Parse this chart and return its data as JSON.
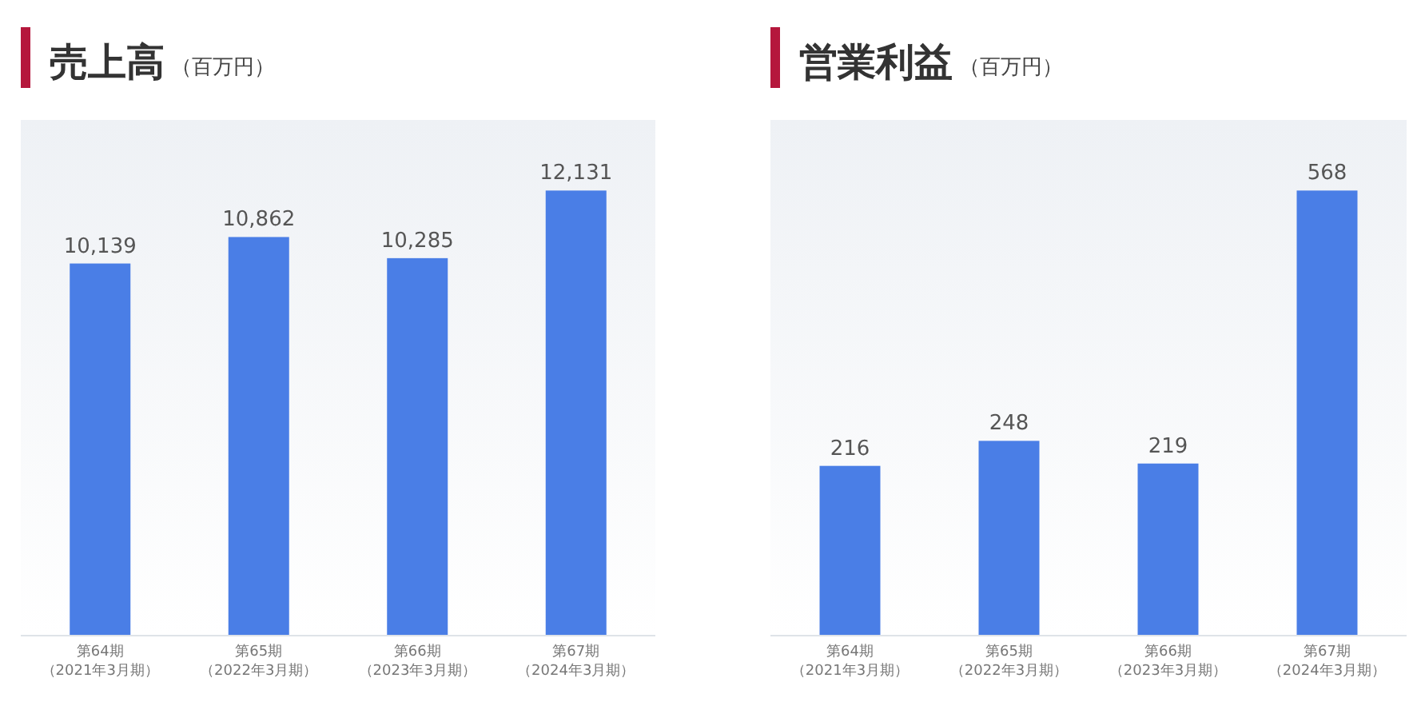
{
  "chart_data": [
    {
      "type": "bar",
      "title": "売上高",
      "subtitle": "（百万円）",
      "categories": [
        "第64期（2021年3月期）",
        "第65期（2022年3月期）",
        "第66期（2023年3月期）",
        "第67期（2024年3月期）"
      ],
      "values": [
        10139,
        10862,
        10285,
        12131
      ],
      "value_labels": [
        "10,139",
        "10,862",
        "10,285",
        "12,131"
      ],
      "color": "#4a7ee6"
    },
    {
      "type": "bar",
      "title": "営業利益",
      "subtitle": "（百万円）",
      "categories": [
        "第64期（2021年3月期）",
        "第65期（2022年3月期）",
        "第66期（2023年3月期）",
        "第67期（2024年3月期）"
      ],
      "values": [
        216,
        248,
        219,
        568
      ],
      "color": "#4a7ee6",
      "data_labels": true
    }
  ]
}
